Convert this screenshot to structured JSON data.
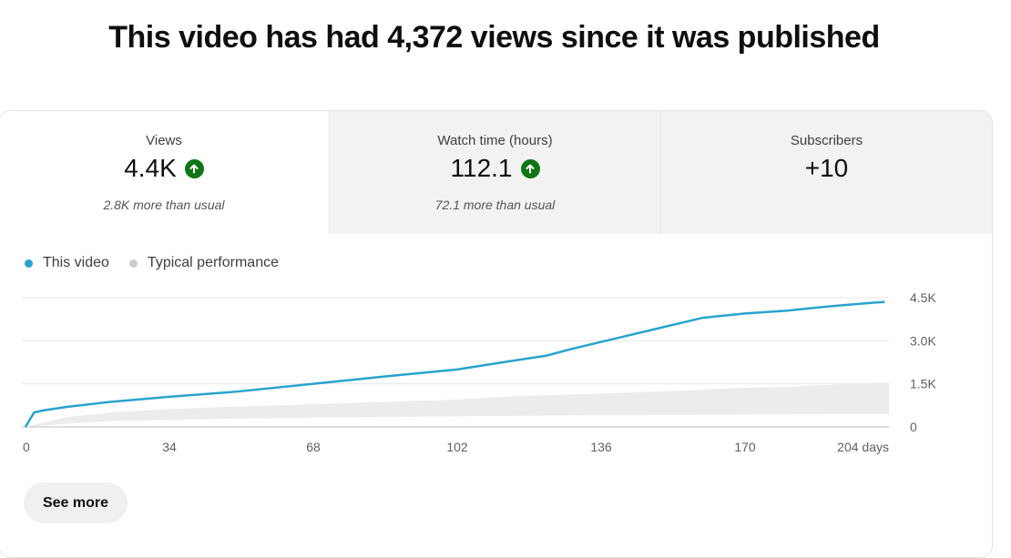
{
  "headline": "This video has had 4,372 views since it was published",
  "stats": [
    {
      "label": "Views",
      "value": "4.4K",
      "trend": "up",
      "note": "2.8K more than usual"
    },
    {
      "label": "Watch time (hours)",
      "value": "112.1",
      "trend": "up",
      "note": "72.1 more than usual"
    },
    {
      "label": "Subscribers",
      "value": "+10",
      "trend": "none",
      "note": ""
    }
  ],
  "legend": {
    "this_video": "This video",
    "typical": "Typical performance"
  },
  "see_more_label": "See more",
  "colors": {
    "line": "#2aa3cc",
    "band": "#ececec",
    "up": "#107516",
    "typical_dot": "#cccccc"
  },
  "chart_data": {
    "type": "line",
    "x_ticks": [
      {
        "value": 0,
        "label": "0"
      },
      {
        "value": 34,
        "label": "34"
      },
      {
        "value": 68,
        "label": "68"
      },
      {
        "value": 102,
        "label": "102"
      },
      {
        "value": 136,
        "label": "136"
      },
      {
        "value": 170,
        "label": "170"
      },
      {
        "value": 204,
        "label": "204 days"
      }
    ],
    "y_ticks": [
      {
        "value": 0,
        "label": "0"
      },
      {
        "value": 1500,
        "label": "1.5K"
      },
      {
        "value": 3000,
        "label": "3.0K"
      },
      {
        "value": 4500,
        "label": "4.5K"
      }
    ],
    "xlim": [
      0,
      204
    ],
    "ylim": [
      0,
      4500
    ],
    "grid": true,
    "series": [
      {
        "name": "This video",
        "x": [
          0,
          2,
          4,
          10,
          20,
          34,
          50,
          68,
          85,
          102,
          115,
          123,
          130,
          140,
          150,
          160,
          170,
          180,
          190,
          200,
          203
        ],
        "y": [
          0,
          500,
          570,
          700,
          870,
          1050,
          1230,
          1500,
          1760,
          2000,
          2300,
          2480,
          2750,
          3100,
          3450,
          3800,
          3950,
          4050,
          4200,
          4320,
          4350
        ]
      },
      {
        "name": "Typical performance",
        "type": "band",
        "x": [
          0,
          10,
          20,
          34,
          50,
          68,
          85,
          102,
          110,
          119,
          137,
          153,
          168,
          180,
          198,
          204
        ],
        "low": [
          0,
          120,
          200,
          250,
          290,
          320,
          350,
          370,
          380,
          390,
          410,
          420,
          430,
          440,
          450,
          450
        ],
        "high": [
          0,
          350,
          500,
          620,
          710,
          790,
          870,
          950,
          1030,
          1080,
          1170,
          1250,
          1350,
          1390,
          1530,
          1550
        ]
      }
    ]
  }
}
